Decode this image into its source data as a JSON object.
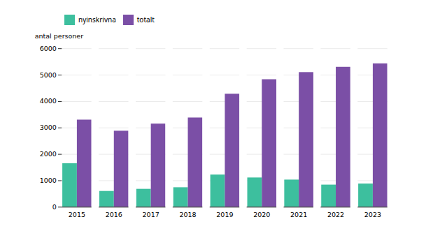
{
  "chart_data": {
    "type": "bar",
    "ylabel": "antal personer",
    "categories": [
      "2015",
      "2016",
      "2017",
      "2018",
      "2019",
      "2020",
      "2021",
      "2022",
      "2023"
    ],
    "series": [
      {
        "name": "nyinskrivna",
        "color": "#3dbf9e",
        "values": [
          1650,
          600,
          680,
          740,
          1220,
          1110,
          1030,
          840,
          880
        ]
      },
      {
        "name": "totalt",
        "color": "#7b4fa6",
        "values": [
          3300,
          2880,
          3150,
          3380,
          4280,
          4830,
          5100,
          5300,
          5430
        ]
      }
    ],
    "ylim": [
      0,
      6000
    ],
    "yticks": [
      0,
      1000,
      2000,
      3000,
      4000,
      5000,
      6000
    ],
    "grid": true,
    "legend": "upper left"
  }
}
